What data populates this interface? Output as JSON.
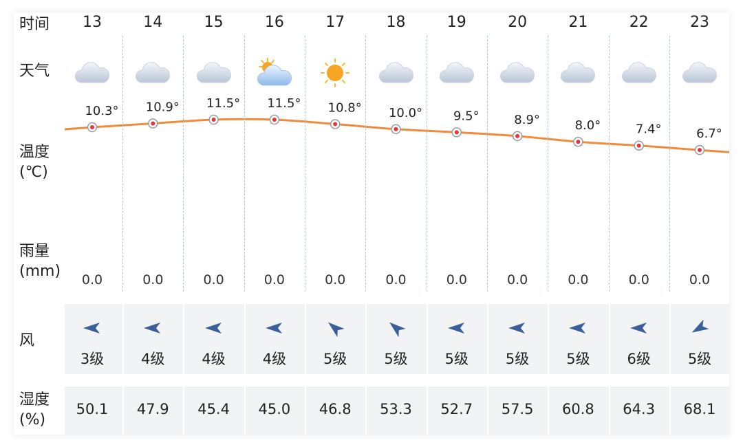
{
  "labels": {
    "time": "时间",
    "weather": "天气",
    "temp_line1": "温度",
    "temp_line2": "(℃)",
    "rain_line1": "雨量",
    "rain_line2": "(mm)",
    "wind": "风",
    "humidity_line1": "湿度",
    "humidity_line2": "(%)"
  },
  "weather_icons": [
    "cloud-icon",
    "cloud-icon",
    "cloud-icon",
    "partly-cloudy-icon",
    "sun-icon",
    "cloud-icon",
    "cloud-icon",
    "cloud-icon",
    "cloud-icon",
    "cloud-icon",
    "cloud-icon"
  ],
  "wind_direction_deg": [
    180,
    180,
    180,
    180,
    220,
    220,
    180,
    180,
    180,
    180,
    150
  ],
  "colors": {
    "temp_line": "#f08b3c",
    "point_fill": "#e8323a",
    "wind_arrow": "#3b5f9a",
    "band_bg": "#f1f3f5",
    "divider": "#a9c9dc"
  },
  "chart_data": {
    "type": "line",
    "x": [
      "13",
      "14",
      "15",
      "16",
      "17",
      "18",
      "19",
      "20",
      "21",
      "22",
      "23"
    ],
    "series": [
      {
        "values": [
          10.3,
          10.9,
          11.5,
          11.5,
          10.8,
          10.0,
          9.5,
          8.9,
          8.0,
          7.4,
          6.7
        ]
      }
    ],
    "temp_labels": [
      "10.3°",
      "10.9°",
      "11.5°",
      "11.5°",
      "10.8°",
      "10.0°",
      "9.5°",
      "8.9°",
      "8.0°",
      "7.4°",
      "6.7°"
    ],
    "rain": [
      "0.0",
      "0.0",
      "0.0",
      "0.0",
      "0.0",
      "0.0",
      "0.0",
      "0.0",
      "0.0",
      "0.0",
      "0.0"
    ],
    "wind_level": [
      "3级",
      "4级",
      "4级",
      "4级",
      "5级",
      "5级",
      "5级",
      "5级",
      "5级",
      "6级",
      "5级"
    ],
    "humidity": [
      "50.1",
      "47.9",
      "45.4",
      "45.0",
      "46.8",
      "53.3",
      "52.7",
      "57.5",
      "60.8",
      "64.3",
      "68.1"
    ]
  }
}
